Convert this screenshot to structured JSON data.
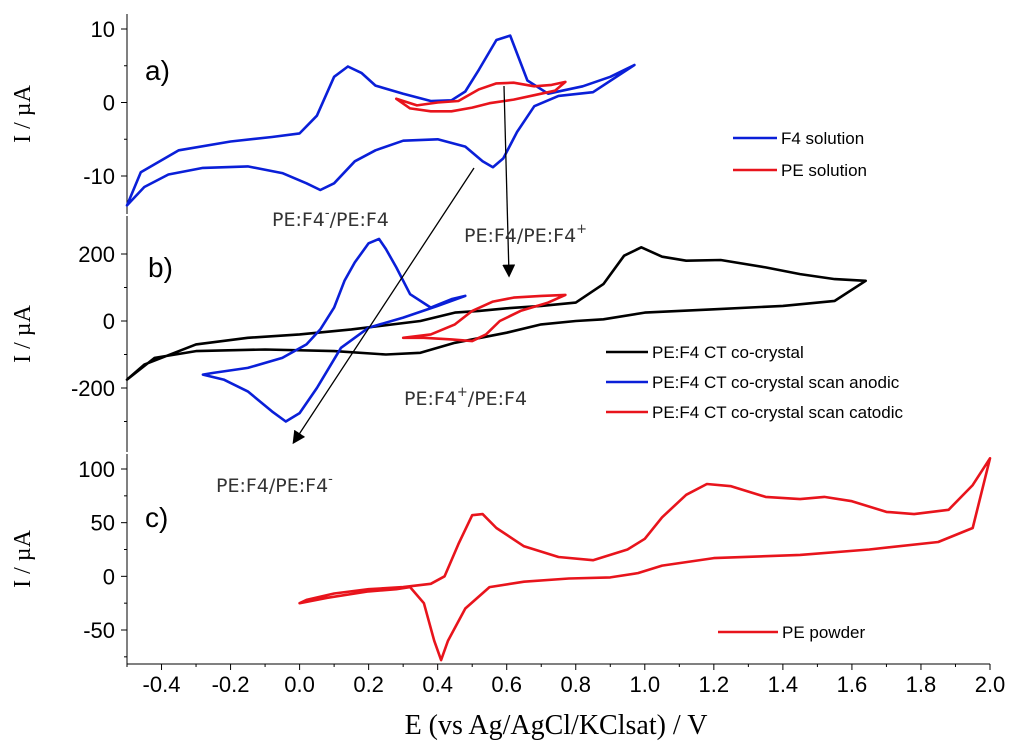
{
  "chart_data": [
    {
      "type": "line",
      "panel_label": "a)",
      "ylabel": "I / µA",
      "ylim": [
        -14,
        10
      ],
      "yticks": [
        -10,
        0,
        10
      ],
      "legend": {
        "placement": "right"
      },
      "series": [
        {
          "name": "F4 solution",
          "color": "#0a1fd8",
          "points": [
            [
              -0.5,
              -14
            ],
            [
              -0.45,
              -11.5
            ],
            [
              -0.38,
              -9.8
            ],
            [
              -0.28,
              -8.9
            ],
            [
              -0.15,
              -8.7
            ],
            [
              -0.05,
              -9.6
            ],
            [
              0.02,
              -11.0
            ],
            [
              0.06,
              -11.9
            ],
            [
              0.1,
              -11.0
            ],
            [
              0.16,
              -8.0
            ],
            [
              0.22,
              -6.5
            ],
            [
              0.3,
              -5.2
            ],
            [
              0.4,
              -5.0
            ],
            [
              0.48,
              -6.0
            ],
            [
              0.53,
              -8.0
            ],
            [
              0.56,
              -8.8
            ],
            [
              0.59,
              -7.6
            ],
            [
              0.63,
              -4.0
            ],
            [
              0.68,
              -0.5
            ],
            [
              0.75,
              0.9
            ],
            [
              0.85,
              1.4
            ],
            [
              0.97,
              5.1
            ],
            [
              0.9,
              3.5
            ],
            [
              0.82,
              2.2
            ],
            [
              0.72,
              1.2
            ],
            [
              0.66,
              3.0
            ],
            [
              0.61,
              9.1
            ],
            [
              0.57,
              8.5
            ],
            [
              0.52,
              4.5
            ],
            [
              0.48,
              1.5
            ],
            [
              0.44,
              0.3
            ],
            [
              0.38,
              0.2
            ],
            [
              0.3,
              1.2
            ],
            [
              0.22,
              2.3
            ],
            [
              0.18,
              4.0
            ],
            [
              0.14,
              4.9
            ],
            [
              0.1,
              3.5
            ],
            [
              0.05,
              -1.8
            ],
            [
              0.0,
              -4.2
            ],
            [
              -0.08,
              -4.7
            ],
            [
              -0.2,
              -5.3
            ],
            [
              -0.35,
              -6.5
            ],
            [
              -0.46,
              -9.5
            ],
            [
              -0.5,
              -14
            ]
          ]
        },
        {
          "name": "PE solution",
          "color": "#e8141c",
          "points": [
            [
              0.28,
              0.5
            ],
            [
              0.34,
              -0.4
            ],
            [
              0.4,
              0.0
            ],
            [
              0.46,
              0.2
            ],
            [
              0.52,
              1.8
            ],
            [
              0.57,
              2.6
            ],
            [
              0.62,
              2.7
            ],
            [
              0.68,
              2.2
            ],
            [
              0.73,
              2.4
            ],
            [
              0.77,
              2.8
            ],
            [
              0.74,
              1.6
            ],
            [
              0.68,
              1.0
            ],
            [
              0.62,
              0.4
            ],
            [
              0.55,
              -0.1
            ],
            [
              0.5,
              -0.7
            ],
            [
              0.44,
              -1.2
            ],
            [
              0.38,
              -1.2
            ],
            [
              0.32,
              -0.8
            ],
            [
              0.28,
              0.5
            ]
          ]
        }
      ]
    },
    {
      "type": "line",
      "panel_label": "b)",
      "ylabel": "I / µA",
      "ylim": [
        -320,
        280
      ],
      "yticks": [
        -200,
        0,
        200
      ],
      "legend": {
        "placement": "bottom-right"
      },
      "series": [
        {
          "name": "PE:F4 CT co-crystal",
          "color": "#000000",
          "points": [
            [
              -0.5,
              -175
            ],
            [
              -0.42,
              -110
            ],
            [
              -0.3,
              -90
            ],
            [
              -0.1,
              -85
            ],
            [
              0.1,
              -90
            ],
            [
              0.25,
              -100
            ],
            [
              0.35,
              -95
            ],
            [
              0.45,
              -65
            ],
            [
              0.6,
              -35
            ],
            [
              0.7,
              -10
            ],
            [
              0.8,
              0
            ],
            [
              0.88,
              5
            ],
            [
              1.0,
              25
            ],
            [
              1.2,
              35
            ],
            [
              1.4,
              45
            ],
            [
              1.55,
              60
            ],
            [
              1.64,
              120
            ],
            [
              1.55,
              125
            ],
            [
              1.45,
              140
            ],
            [
              1.35,
              160
            ],
            [
              1.22,
              182
            ],
            [
              1.12,
              180
            ],
            [
              1.05,
              192
            ],
            [
              0.99,
              220
            ],
            [
              0.94,
              195
            ],
            [
              0.88,
              110
            ],
            [
              0.8,
              55
            ],
            [
              0.7,
              45
            ],
            [
              0.6,
              38
            ],
            [
              0.52,
              30
            ],
            [
              0.45,
              25
            ],
            [
              0.35,
              0
            ],
            [
              0.15,
              -25
            ],
            [
              0.0,
              -40
            ],
            [
              -0.15,
              -50
            ],
            [
              -0.3,
              -70
            ],
            [
              -0.45,
              -130
            ],
            [
              -0.5,
              -175
            ]
          ]
        },
        {
          "name": "PE:F4 CT co-crystal scan anodic",
          "color": "#0a1fd8",
          "points": [
            [
              0.48,
              75
            ],
            [
              0.44,
              65
            ],
            [
              0.38,
              40
            ],
            [
              0.32,
              80
            ],
            [
              0.28,
              160
            ],
            [
              0.25,
              215
            ],
            [
              0.23,
              245
            ],
            [
              0.2,
              232
            ],
            [
              0.16,
              175
            ],
            [
              0.13,
              120
            ],
            [
              0.1,
              40
            ],
            [
              0.06,
              -25
            ],
            [
              0.02,
              -70
            ],
            [
              -0.05,
              -110
            ],
            [
              -0.15,
              -140
            ],
            [
              -0.25,
              -155
            ],
            [
              -0.28,
              -160
            ],
            [
              -0.22,
              -175
            ],
            [
              -0.15,
              -210
            ],
            [
              -0.08,
              -270
            ],
            [
              -0.04,
              -300
            ],
            [
              0.0,
              -275
            ],
            [
              0.05,
              -200
            ],
            [
              0.12,
              -80
            ],
            [
              0.2,
              -20
            ],
            [
              0.3,
              10
            ],
            [
              0.4,
              45
            ],
            [
              0.48,
              75
            ]
          ]
        },
        {
          "name": "PE:F4 CT co-crystal scan catodic",
          "color": "#e8141c",
          "points": [
            [
              0.3,
              -50
            ],
            [
              0.38,
              -40
            ],
            [
              0.45,
              -10
            ],
            [
              0.5,
              30
            ],
            [
              0.56,
              58
            ],
            [
              0.62,
              70
            ],
            [
              0.7,
              75
            ],
            [
              0.77,
              78
            ],
            [
              0.72,
              55
            ],
            [
              0.64,
              30
            ],
            [
              0.58,
              0
            ],
            [
              0.54,
              -40
            ],
            [
              0.5,
              -60
            ],
            [
              0.44,
              -55
            ],
            [
              0.36,
              -50
            ],
            [
              0.3,
              -50
            ]
          ]
        }
      ],
      "annotations": [
        {
          "text": "PE:F4",
          "sup": "-",
          "text2": "/PE:F4",
          "sup2": ""
        },
        {
          "text": "PE:F4/PE:F4",
          "sup": "+",
          "text2": "",
          "sup2": ""
        },
        {
          "text": "PE:F4",
          "sup": "+",
          "text2": "/PE:F4",
          "sup2": ""
        },
        {
          "text": "PE:F4/PE:F4",
          "sup": "-",
          "text2": "",
          "sup2": ""
        }
      ]
    },
    {
      "type": "line",
      "panel_label": "c)",
      "ylabel": "I / µA",
      "xlabel": "E (vs Ag/AgCl/KClsat) / V",
      "xlim": [
        -0.5,
        2.0
      ],
      "xticks": [
        "-0.4",
        "-0.2",
        "0.0",
        "0.2",
        "0.4",
        "0.6",
        "0.8",
        "1.0",
        "1.2",
        "1.4",
        "1.6",
        "1.8",
        "2.0"
      ],
      "ylim": [
        -80,
        110
      ],
      "yticks": [
        -50,
        0,
        50,
        100
      ],
      "legend": {
        "placement": "bottom-right"
      },
      "series": [
        {
          "name": "PE powder",
          "color": "#e8141c",
          "points": [
            [
              0.0,
              -25
            ],
            [
              0.08,
              -20
            ],
            [
              0.2,
              -14
            ],
            [
              0.28,
              -12
            ],
            [
              0.32,
              -10
            ],
            [
              0.36,
              -25
            ],
            [
              0.39,
              -60
            ],
            [
              0.41,
              -78
            ],
            [
              0.43,
              -60
            ],
            [
              0.48,
              -30
            ],
            [
              0.55,
              -10
            ],
            [
              0.65,
              -5
            ],
            [
              0.78,
              -2
            ],
            [
              0.9,
              -1
            ],
            [
              0.98,
              3
            ],
            [
              1.05,
              10
            ],
            [
              1.2,
              17
            ],
            [
              1.45,
              20
            ],
            [
              1.65,
              25
            ],
            [
              1.85,
              32
            ],
            [
              1.95,
              45
            ],
            [
              2.0,
              110
            ],
            [
              1.95,
              85
            ],
            [
              1.88,
              62
            ],
            [
              1.78,
              58
            ],
            [
              1.7,
              60
            ],
            [
              1.6,
              70
            ],
            [
              1.52,
              74
            ],
            [
              1.45,
              72
            ],
            [
              1.35,
              74
            ],
            [
              1.25,
              84
            ],
            [
              1.18,
              86
            ],
            [
              1.12,
              76
            ],
            [
              1.05,
              55
            ],
            [
              1.0,
              35
            ],
            [
              0.95,
              25
            ],
            [
              0.85,
              15
            ],
            [
              0.75,
              18
            ],
            [
              0.65,
              28
            ],
            [
              0.57,
              45
            ],
            [
              0.53,
              58
            ],
            [
              0.5,
              57
            ],
            [
              0.46,
              30
            ],
            [
              0.42,
              0
            ],
            [
              0.38,
              -7
            ],
            [
              0.3,
              -10
            ],
            [
              0.2,
              -12
            ],
            [
              0.1,
              -16
            ],
            [
              0.02,
              -22
            ],
            [
              0.0,
              -25
            ]
          ]
        }
      ]
    }
  ]
}
